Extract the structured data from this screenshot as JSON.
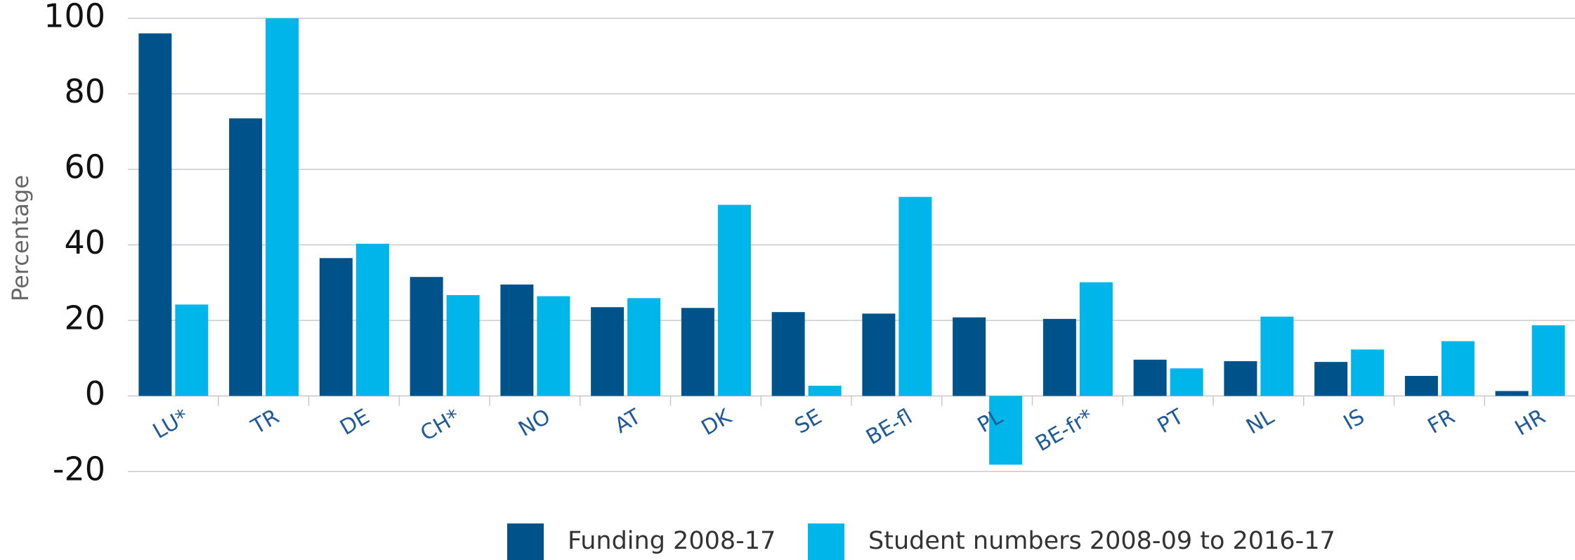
{
  "chart_data": {
    "type": "bar",
    "y_label": "Percentage",
    "categories": [
      "LU*",
      "TR",
      "DE",
      "CH*",
      "NO",
      "AT",
      "DK",
      "SE",
      "BE-fl",
      "PL",
      "BE-fr*",
      "PT",
      "NL",
      "IS",
      "FR",
      "HR"
    ],
    "series": [
      {
        "name": "Funding 2008-17",
        "color": "#00538a",
        "values": [
          96,
          73.5,
          36.5,
          31.5,
          29.5,
          23.5,
          23.3,
          22.2,
          21.8,
          20.8,
          20.4,
          9.6,
          9.2,
          9,
          5.3,
          1.3
        ]
      },
      {
        "name": "Student numbers 2008-09 to 2016-17",
        "color": "#00b5ea",
        "values": [
          24.2,
          100,
          40.3,
          26.7,
          26.4,
          25.9,
          50.6,
          2.7,
          52.7,
          -18.2,
          30.1,
          7.3,
          21,
          12.3,
          14.5,
          18.7
        ]
      }
    ],
    "ylim": [
      -20,
      100
    ],
    "yticks": [
      -20,
      0,
      20,
      40,
      60,
      80,
      100
    ],
    "grid": true,
    "legend": "bottom"
  }
}
